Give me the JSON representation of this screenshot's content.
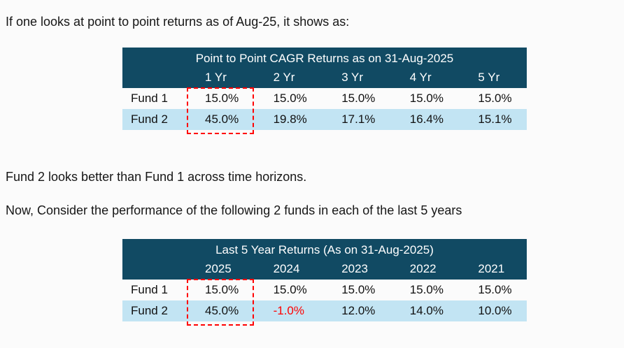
{
  "page": {
    "intro_text": "If one looks at point to point returns as of Aug-25, it shows as:",
    "note_text": "Fund 2 looks better than Fund 1 across time horizons.",
    "consider_text": "Now, Consider the performance of the following 2 funds in each of the last 5 years"
  },
  "colors": {
    "page_bg": "#fbfbfb",
    "text": "#161616",
    "header_bg": "#114a63",
    "header_text": "#ffffff",
    "alt_row_bg": "#c2e4f3",
    "highlight": "#ff0000",
    "negative": "#ff0000"
  },
  "table1": {
    "title": "Point to Point CAGR Returns as on 31-Aug-2025",
    "columns": [
      "1 Yr",
      "2 Yr",
      "3 Yr",
      "4 Yr",
      "5 Yr"
    ],
    "rows": [
      {
        "label": "Fund 1",
        "values": [
          "15.0%",
          "15.0%",
          "15.0%",
          "15.0%",
          "15.0%"
        ]
      },
      {
        "label": "Fund 2",
        "values": [
          "45.0%",
          "19.8%",
          "17.1%",
          "16.4%",
          "15.1%"
        ]
      }
    ],
    "highlighted_column": "1 Yr"
  },
  "table2": {
    "title": "Last 5 Year Returns (As on 31-Aug-2025)",
    "columns": [
      "2025",
      "2024",
      "2023",
      "2022",
      "2021"
    ],
    "rows": [
      {
        "label": "Fund 1",
        "values": [
          "15.0%",
          "15.0%",
          "15.0%",
          "15.0%",
          "15.0%"
        ]
      },
      {
        "label": "Fund 2",
        "values": [
          "45.0%",
          "-1.0%",
          "12.0%",
          "14.0%",
          "10.0%"
        ]
      }
    ],
    "highlighted_column": "2025",
    "negative_cell": {
      "row": "Fund 2",
      "column": "2024"
    }
  }
}
